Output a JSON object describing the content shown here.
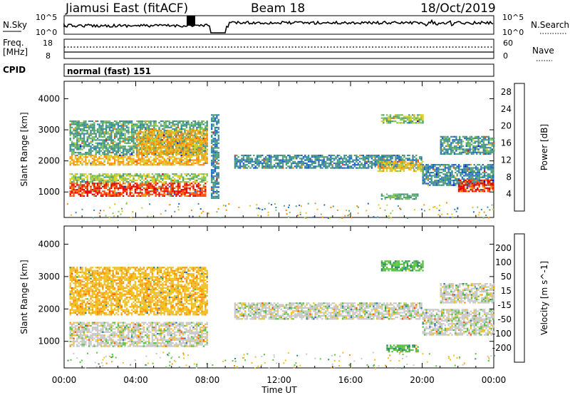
{
  "header": {
    "station": "Jiamusi East (fitACF)",
    "beam": "Beam 18",
    "date": "18/Oct/2019"
  },
  "noise_panel": {
    "left_label": "N.Sky",
    "right_label": "N.Search",
    "left_ticks": [
      "10^5",
      "10^0"
    ],
    "right_ticks": [
      "10^5",
      "10^0"
    ]
  },
  "freq_panel": {
    "left_label": "Freq.",
    "left_unit": "[MHz]",
    "left_ticks": [
      "18",
      "8"
    ],
    "right_label": "Nave",
    "right_ticks": [
      "60",
      "0"
    ]
  },
  "cpid": {
    "label": "CPID",
    "mode": "normal (fast) 151"
  },
  "chart_data": [
    {
      "type": "heatmap",
      "title": "",
      "xlabel": "Time UT",
      "ylabel": "Slant Range [km]",
      "x_ticks": [
        "00:00",
        "04:00",
        "08:00",
        "12:00",
        "16:00",
        "20:00",
        "00:00"
      ],
      "xlim_hours": [
        0,
        24
      ],
      "y_ticks": [
        1000,
        2000,
        3000,
        4000
      ],
      "ylim": [
        180,
        4560
      ],
      "colorbar": {
        "label": "Power [dB]",
        "ticks": [
          4,
          8,
          12,
          16,
          20,
          24,
          28
        ],
        "range": [
          0,
          30
        ],
        "colors": [
          "#0000e8",
          "#1e5fd0",
          "#3a8a9e",
          "#4ea070",
          "#7bc060",
          "#d8d020",
          "#f2b420",
          "#ff8c00",
          "#ff4a00",
          "#e80000"
        ]
      },
      "bands": [
        {
          "t0": 0.3,
          "t1": 7.9,
          "r0": 850,
          "r1": 1300,
          "value": 27
        },
        {
          "t0": 0.3,
          "t1": 8.0,
          "r0": 1300,
          "r1": 1600,
          "value": 14
        },
        {
          "t0": 0.3,
          "t1": 8.0,
          "r0": 1850,
          "r1": 2200,
          "value": 20
        },
        {
          "t0": 0.3,
          "t1": 8.0,
          "r0": 2200,
          "r1": 3300,
          "value": 10
        },
        {
          "t0": 4.0,
          "t1": 8.0,
          "r0": 2200,
          "r1": 3000,
          "value": 20
        },
        {
          "t0": 8.2,
          "t1": 8.6,
          "r0": 800,
          "r1": 3500,
          "value": 8
        },
        {
          "t0": 9.5,
          "t1": 20.0,
          "r0": 1750,
          "r1": 2200,
          "value": 8
        },
        {
          "t0": 17.5,
          "t1": 20.0,
          "r0": 1650,
          "r1": 2000,
          "value": 18
        },
        {
          "t0": 17.7,
          "t1": 20.0,
          "r0": 3200,
          "r1": 3500,
          "value": 14
        },
        {
          "t0": 17.7,
          "t1": 19.8,
          "r0": 750,
          "r1": 950,
          "value": 11
        },
        {
          "t0": 20.0,
          "t1": 24.0,
          "r0": 1200,
          "r1": 1900,
          "value": 8
        },
        {
          "t0": 22.0,
          "t1": 24.0,
          "r0": 1000,
          "r1": 1400,
          "value": 27
        },
        {
          "t0": 21.0,
          "t1": 24.0,
          "r0": 2200,
          "r1": 2800,
          "value": 9
        }
      ]
    },
    {
      "type": "heatmap",
      "title": "",
      "xlabel": "Time UT",
      "ylabel": "Slant Range [km]",
      "x_ticks": [
        "00:00",
        "04:00",
        "08:00",
        "12:00",
        "16:00",
        "20:00",
        "00:00"
      ],
      "xlim_hours": [
        0,
        24
      ],
      "y_ticks": [
        1000,
        2000,
        3000,
        4000
      ],
      "ylim": [
        180,
        4560
      ],
      "colorbar": {
        "label": "Velocity [m s^-1]",
        "ticks": [
          200,
          100,
          50,
          15,
          -15,
          -50,
          -100,
          -200
        ],
        "colors": [
          "#1a3cc8",
          "#3070b8",
          "#2a8a60",
          "#58c040",
          "#c8c8c8",
          "#f0c020",
          "#ff9000",
          "#ff5000",
          "#e80000"
        ]
      },
      "bands": [
        {
          "t0": 0.3,
          "t1": 8.0,
          "r0": 850,
          "r1": 1600,
          "value": 0
        },
        {
          "t0": 0.3,
          "t1": 8.0,
          "r0": 1800,
          "r1": 3300,
          "value": -40
        },
        {
          "t0": 9.5,
          "t1": 20.0,
          "r0": 1700,
          "r1": 2200,
          "value": 0
        },
        {
          "t0": 17.7,
          "t1": 20.0,
          "r0": 3200,
          "r1": 3500,
          "value": 40
        },
        {
          "t0": 18.0,
          "t1": 19.8,
          "r0": 700,
          "r1": 900,
          "value": 40
        },
        {
          "t0": 20.0,
          "t1": 24.0,
          "r0": 1200,
          "r1": 2000,
          "value": 0
        },
        {
          "t0": 21.0,
          "t1": 24.0,
          "r0": 2200,
          "r1": 2800,
          "value": 0
        }
      ]
    }
  ]
}
